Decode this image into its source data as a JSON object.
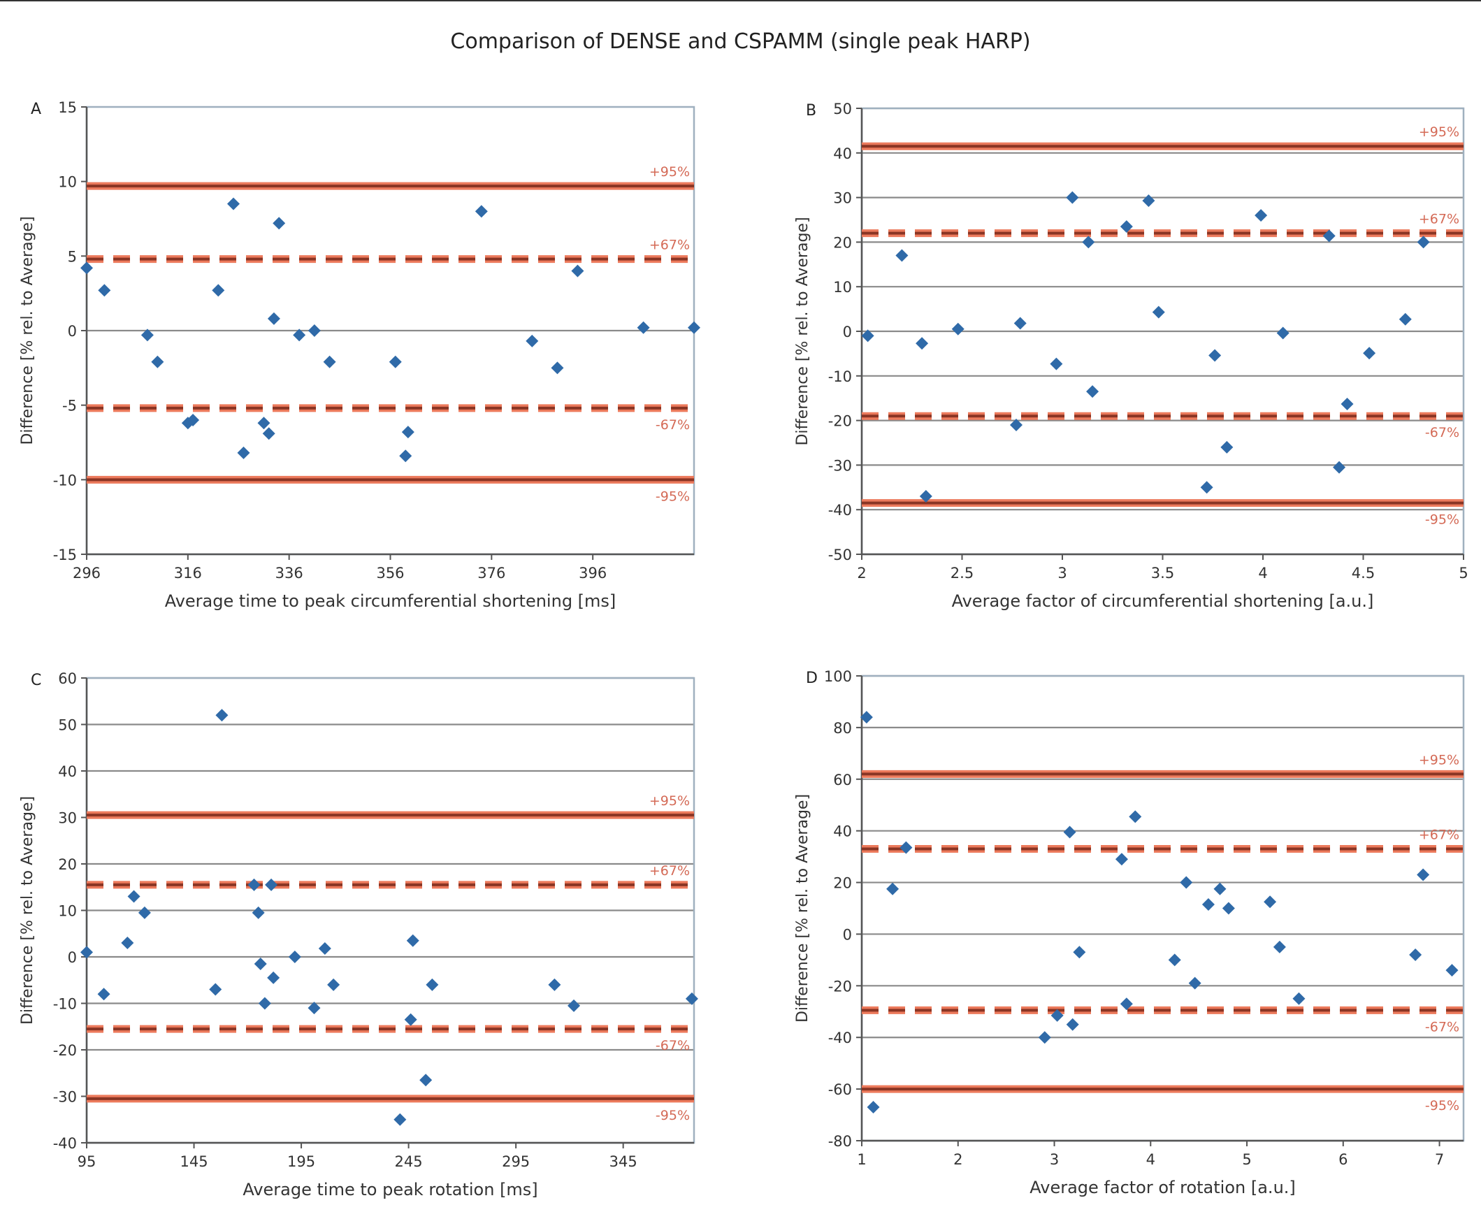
{
  "chart_data": {
    "title": "Comparison of DENSE and CSPAMM (single peak HARP)",
    "panels": [
      {
        "letter": "A",
        "type": "scatter",
        "xlabel": "Average time to peak circumferential shortening [ms]",
        "ylabel": "Difference [% rel. to Average]",
        "xlim": [
          296,
          416
        ],
        "ylim": [
          -15,
          15
        ],
        "xticks": [
          296,
          316,
          336,
          356,
          376,
          396
        ],
        "yticks": [
          -15,
          -10,
          -5,
          0,
          5,
          10,
          15
        ],
        "grid": false,
        "zero_line": true,
        "limits": [
          {
            "label": "+95%",
            "value": 9.7,
            "style": "solid"
          },
          {
            "label": "+67%",
            "value": 4.8,
            "style": "dashed"
          },
          {
            "label": "-67%",
            "value": -5.2,
            "style": "dashed"
          },
          {
            "label": "-95%",
            "value": -10,
            "style": "solid"
          }
        ],
        "points": [
          [
            296,
            4.2
          ],
          [
            299.5,
            2.7
          ],
          [
            308,
            -0.3
          ],
          [
            310,
            -2.1
          ],
          [
            316,
            -6.2
          ],
          [
            317,
            -6
          ],
          [
            322,
            2.7
          ],
          [
            325,
            8.5
          ],
          [
            327,
            -8.2
          ],
          [
            331,
            -6.2
          ],
          [
            332,
            -6.9
          ],
          [
            333,
            0.8
          ],
          [
            334,
            7.2
          ],
          [
            338,
            -0.3
          ],
          [
            341,
            0
          ],
          [
            344,
            -2.1
          ],
          [
            357,
            -2.1
          ],
          [
            359,
            -8.4
          ],
          [
            359.5,
            -6.8
          ],
          [
            374,
            8
          ],
          [
            384,
            -0.7
          ],
          [
            389,
            -2.5
          ],
          [
            393,
            4
          ],
          [
            406,
            0.2
          ],
          [
            416,
            0.2
          ]
        ]
      },
      {
        "letter": "B",
        "type": "scatter",
        "xlabel": "Average factor of circumferential shortening [a.u.]",
        "ylabel": "Difference [% rel. to Average]",
        "xlim": [
          2,
          5
        ],
        "ylim": [
          -50,
          50
        ],
        "xticks": [
          2,
          2.5,
          3,
          3.5,
          4,
          4.5,
          5
        ],
        "yticks": [
          -50,
          -40,
          -30,
          -20,
          -10,
          0,
          10,
          20,
          30,
          40,
          50
        ],
        "grid": true,
        "limits": [
          {
            "label": "+95%",
            "value": 41.5,
            "style": "solid"
          },
          {
            "label": "+67%",
            "value": 22,
            "style": "dashed"
          },
          {
            "label": "-67%",
            "value": -19,
            "style": "dashed"
          },
          {
            "label": "-95%",
            "value": -38.5,
            "style": "solid"
          }
        ],
        "points": [
          [
            2.03,
            -1
          ],
          [
            2.2,
            17
          ],
          [
            2.3,
            -2.7
          ],
          [
            2.32,
            -37
          ],
          [
            2.48,
            0.5
          ],
          [
            2.77,
            -21
          ],
          [
            2.79,
            1.8
          ],
          [
            2.97,
            -7.3
          ],
          [
            3.05,
            30
          ],
          [
            3.13,
            20
          ],
          [
            3.15,
            -13.5
          ],
          [
            3.32,
            23.5
          ],
          [
            3.43,
            29.3
          ],
          [
            3.48,
            4.3
          ],
          [
            3.72,
            -35
          ],
          [
            3.76,
            -5.4
          ],
          [
            3.82,
            -26
          ],
          [
            3.99,
            26
          ],
          [
            4.1,
            -0.4
          ],
          [
            4.33,
            21.4
          ],
          [
            4.38,
            -30.5
          ],
          [
            4.42,
            -16.3
          ],
          [
            4.53,
            -4.9
          ],
          [
            4.71,
            2.7
          ],
          [
            4.8,
            20
          ]
        ]
      },
      {
        "letter": "C",
        "type": "scatter",
        "xlabel": "Average time to peak rotation [ms]",
        "ylabel": "Difference [% rel. to Average]",
        "xlim": [
          95,
          378
        ],
        "ylim": [
          -40,
          60
        ],
        "xticks": [
          95,
          145,
          195,
          245,
          295,
          345
        ],
        "yticks": [
          -40,
          -30,
          -20,
          -10,
          0,
          10,
          20,
          30,
          40,
          50,
          60
        ],
        "grid": true,
        "limits": [
          {
            "label": "+95%",
            "value": 30.5,
            "style": "solid"
          },
          {
            "label": "+67%",
            "value": 15.5,
            "style": "dashed"
          },
          {
            "label": "-67%",
            "value": -15.5,
            "style": "dashed"
          },
          {
            "label": "-95%",
            "value": -30.5,
            "style": "solid"
          }
        ],
        "points": [
          [
            95,
            1
          ],
          [
            103,
            -8
          ],
          [
            114,
            3
          ],
          [
            117,
            13
          ],
          [
            122,
            9.5
          ],
          [
            155,
            -7
          ],
          [
            158,
            52
          ],
          [
            173,
            15.5
          ],
          [
            175,
            9.5
          ],
          [
            176,
            -1.5
          ],
          [
            178,
            -10
          ],
          [
            181,
            15.5
          ],
          [
            182,
            -4.5
          ],
          [
            192,
            0
          ],
          [
            201,
            -11
          ],
          [
            206,
            1.8
          ],
          [
            210,
            -6
          ],
          [
            241,
            -35
          ],
          [
            246,
            -13.5
          ],
          [
            247,
            3.5
          ],
          [
            253,
            -26.5
          ],
          [
            256,
            -6
          ],
          [
            313,
            -6
          ],
          [
            322,
            -10.5
          ],
          [
            377,
            -9
          ]
        ]
      },
      {
        "letter": "D",
        "type": "scatter",
        "xlabel": "Average factor of rotation [a.u.]",
        "ylabel": "Difference [% rel. to Average]",
        "xlim": [
          1,
          7.25
        ],
        "ylim": [
          -80,
          100
        ],
        "xticks": [
          1,
          2,
          3,
          4,
          5,
          6,
          7
        ],
        "yticks": [
          -80,
          -60,
          -40,
          -20,
          0,
          20,
          40,
          60,
          80,
          100
        ],
        "grid": true,
        "limits": [
          {
            "label": "+95%",
            "value": 62,
            "style": "solid"
          },
          {
            "label": "+67%",
            "value": 33,
            "style": "dashed"
          },
          {
            "label": "-67%",
            "value": -29.5,
            "style": "dashed"
          },
          {
            "label": "-95%",
            "value": -60,
            "style": "solid"
          }
        ],
        "points": [
          [
            1.05,
            84
          ],
          [
            1.12,
            -67
          ],
          [
            1.32,
            17.5
          ],
          [
            1.46,
            33.5
          ],
          [
            2.9,
            -40
          ],
          [
            3.03,
            -31.5
          ],
          [
            3.16,
            39.5
          ],
          [
            3.19,
            -35
          ],
          [
            3.26,
            -7
          ],
          [
            3.7,
            29
          ],
          [
            3.75,
            -27
          ],
          [
            3.84,
            45.5
          ],
          [
            4.25,
            -10
          ],
          [
            4.37,
            20
          ],
          [
            4.46,
            -19
          ],
          [
            4.6,
            11.5
          ],
          [
            4.72,
            17.5
          ],
          [
            4.81,
            10
          ],
          [
            5.24,
            12.5
          ],
          [
            5.34,
            -5
          ],
          [
            5.54,
            -25
          ],
          [
            6.75,
            -8
          ],
          [
            6.83,
            23
          ],
          [
            7.13,
            -14
          ]
        ]
      }
    ],
    "colors": {
      "point": "#2f6aa8",
      "limit_dark": "#8a3524",
      "limit_halo": "#ec7a5c",
      "limit_label": "#d46a56",
      "grid": "#8a8a8a",
      "frame": "#9fb0bf"
    }
  }
}
